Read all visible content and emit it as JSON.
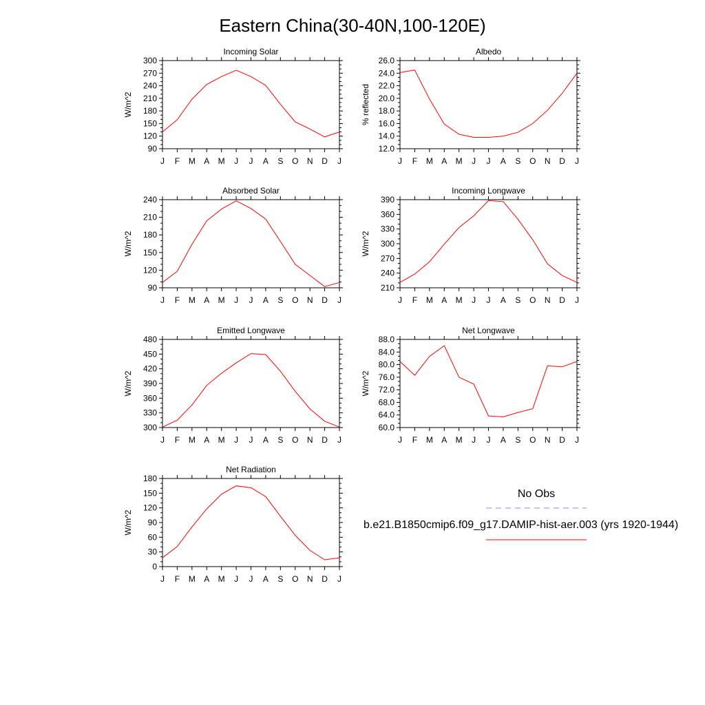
{
  "figure": {
    "title": "Eastern China(30-40N,100-120E)"
  },
  "legend": {
    "obs_label": "No Obs",
    "obs_color": "#8888ff",
    "model_label": "b.e21.B1850cmip6.f09_g17.DAMIP-hist-aer.003 (yrs 1920-1944)",
    "model_color": "#ff0000"
  },
  "chart_data": [
    {
      "type": "line",
      "title": "Incoming Solar",
      "ylabel": "W/m^2",
      "x": [
        "J",
        "F",
        "M",
        "A",
        "M",
        "J",
        "J",
        "A",
        "S",
        "O",
        "N",
        "D",
        "J"
      ],
      "ylim": [
        90,
        300
      ],
      "yticks": [
        "90",
        "120",
        "150",
        "180",
        "210",
        "240",
        "270",
        "300"
      ],
      "grid": false,
      "series": [
        {
          "values": [
            130,
            159,
            208,
            243,
            262,
            277,
            262,
            241,
            196,
            154,
            137,
            118,
            130
          ]
        }
      ]
    },
    {
      "type": "line",
      "title": "Albedo",
      "ylabel": "% reflected",
      "x": [
        "J",
        "F",
        "M",
        "A",
        "M",
        "J",
        "J",
        "A",
        "S",
        "O",
        "N",
        "D",
        "J"
      ],
      "ylim": [
        12,
        26
      ],
      "yticks": [
        "12.0",
        "14.0",
        "16.0",
        "18.0",
        "20.0",
        "22.0",
        "24.0",
        "26.0"
      ],
      "grid": false,
      "series": [
        {
          "values": [
            24.1,
            24.5,
            19.9,
            15.9,
            14.3,
            13.8,
            13.8,
            14.0,
            14.6,
            16.0,
            18.1,
            20.8,
            24.0
          ]
        }
      ]
    },
    {
      "type": "line",
      "title": "Absorbed Solar",
      "ylabel": "W/m^2",
      "x": [
        "J",
        "F",
        "M",
        "A",
        "M",
        "J",
        "J",
        "A",
        "S",
        "O",
        "N",
        "D",
        "J"
      ],
      "ylim": [
        90,
        240
      ],
      "yticks": [
        "90",
        "120",
        "150",
        "180",
        "210",
        "240"
      ],
      "grid": false,
      "series": [
        {
          "values": [
            99,
            118,
            164,
            204,
            224,
            238,
            225,
            207,
            169,
            130,
            111,
            92,
            99
          ]
        }
      ]
    },
    {
      "type": "line",
      "title": "Incoming Longwave",
      "ylabel": "W/m^2",
      "x": [
        "J",
        "F",
        "M",
        "A",
        "M",
        "J",
        "J",
        "A",
        "S",
        "O",
        "N",
        "D",
        "J"
      ],
      "ylim": [
        210,
        390
      ],
      "yticks": [
        "210",
        "240",
        "270",
        "300",
        "330",
        "360",
        "390"
      ],
      "grid": false,
      "series": [
        {
          "values": [
            221,
            238,
            263,
            299,
            333,
            357,
            388,
            386,
            350,
            308,
            259,
            235,
            221
          ]
        }
      ]
    },
    {
      "type": "line",
      "title": "Emitted Longwave",
      "ylabel": "W/m^2",
      "x": [
        "J",
        "F",
        "M",
        "A",
        "M",
        "J",
        "J",
        "A",
        "S",
        "O",
        "N",
        "D",
        "J"
      ],
      "ylim": [
        300,
        480
      ],
      "yticks": [
        "300",
        "330",
        "360",
        "390",
        "420",
        "450",
        "480"
      ],
      "grid": false,
      "series": [
        {
          "values": [
            301,
            315,
            346,
            386,
            411,
            432,
            451,
            449,
            415,
            374,
            338,
            313,
            301
          ]
        }
      ]
    },
    {
      "type": "line",
      "title": "Net Longwave",
      "ylabel": "W/m^2",
      "x": [
        "J",
        "F",
        "M",
        "A",
        "M",
        "J",
        "J",
        "A",
        "S",
        "O",
        "N",
        "D",
        "J"
      ],
      "ylim": [
        60,
        88
      ],
      "yticks": [
        "60.0",
        "64.0",
        "68.0",
        "72.0",
        "76.0",
        "80.0",
        "84.0",
        "88.0"
      ],
      "grid": false,
      "series": [
        {
          "values": [
            81.0,
            76.6,
            82.6,
            86.0,
            76.0,
            73.8,
            63.7,
            63.4,
            64.8,
            66.0,
            79.6,
            79.3,
            81.0
          ]
        }
      ]
    },
    {
      "type": "line",
      "title": "Net Radiation",
      "ylabel": "W/m^2",
      "x": [
        "J",
        "F",
        "M",
        "A",
        "M",
        "J",
        "J",
        "A",
        "S",
        "O",
        "N",
        "D",
        "J"
      ],
      "ylim": [
        0,
        180
      ],
      "yticks": [
        "0",
        "30",
        "60",
        "90",
        "120",
        "150",
        "180"
      ],
      "grid": false,
      "series": [
        {
          "values": [
            18,
            41,
            81,
            118,
            148,
            165,
            161,
            143,
            103,
            64,
            33,
            14,
            18
          ]
        }
      ]
    }
  ]
}
